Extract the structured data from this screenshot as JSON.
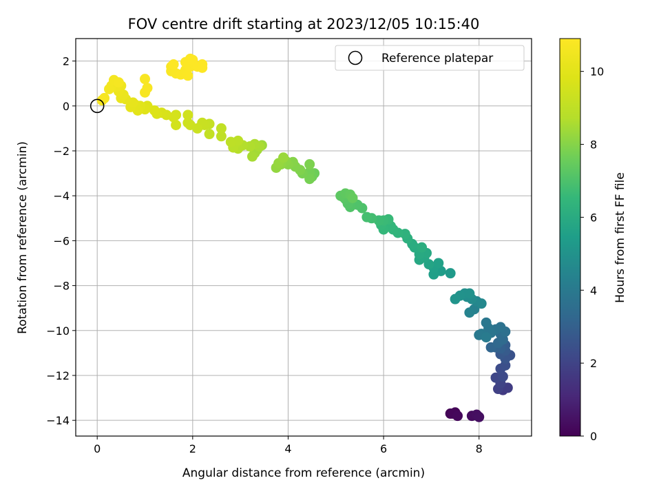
{
  "chart_data": {
    "type": "scatter",
    "title": "FOV centre drift starting at 2023/12/05 10:15:40",
    "xlabel": "Angular distance from reference (arcmin)",
    "ylabel": "Rotation from reference (arcmin)",
    "xlim": [
      -0.45,
      9.1
    ],
    "ylim": [
      -14.7,
      3.0
    ],
    "xticks": [
      0,
      2,
      4,
      6,
      8
    ],
    "yticks": [
      2,
      0,
      -2,
      -4,
      -6,
      -8,
      -10,
      -12,
      -14
    ],
    "grid": true,
    "legend": {
      "placement": "top-right",
      "entries": [
        "Reference platepar"
      ]
    },
    "reference_point": {
      "x": 0,
      "y": 0,
      "label": "Reference platepar"
    },
    "colorbar": {
      "label": "Hours from first FF file",
      "colormap": "viridis",
      "range": [
        0,
        10.9
      ],
      "ticks": [
        0,
        2,
        4,
        6,
        8,
        10
      ]
    },
    "color_encoding": "hours",
    "series": [
      {
        "points": [
          {
            "x": 7.4,
            "y": -13.7,
            "hours": 0.05
          },
          {
            "x": 7.5,
            "y": -13.65,
            "hours": 0.1
          },
          {
            "x": 7.45,
            "y": -13.7,
            "hours": 0.15
          },
          {
            "x": 7.55,
            "y": -13.8,
            "hours": 0.2
          },
          {
            "x": 7.85,
            "y": -13.8,
            "hours": 0.3
          },
          {
            "x": 7.95,
            "y": -13.75,
            "hours": 0.35
          },
          {
            "x": 8.0,
            "y": -13.85,
            "hours": 0.4
          },
          {
            "x": 8.5,
            "y": -12.65,
            "hours": 1.7
          },
          {
            "x": 8.6,
            "y": -12.55,
            "hours": 1.8
          },
          {
            "x": 8.4,
            "y": -12.6,
            "hours": 1.9
          },
          {
            "x": 8.45,
            "y": -12.35,
            "hours": 2.0
          },
          {
            "x": 8.35,
            "y": -12.1,
            "hours": 2.1
          },
          {
            "x": 8.5,
            "y": -12.05,
            "hours": 2.2
          },
          {
            "x": 8.45,
            "y": -11.7,
            "hours": 2.3
          },
          {
            "x": 8.55,
            "y": -11.55,
            "hours": 2.4
          },
          {
            "x": 8.65,
            "y": -11.1,
            "hours": 2.5
          },
          {
            "x": 8.55,
            "y": -11.25,
            "hours": 2.6
          },
          {
            "x": 8.45,
            "y": -11.05,
            "hours": 2.7
          },
          {
            "x": 8.55,
            "y": -10.9,
            "hours": 2.8
          },
          {
            "x": 8.55,
            "y": -10.65,
            "hours": 2.9
          },
          {
            "x": 8.45,
            "y": -10.8,
            "hours": 3.0
          },
          {
            "x": 8.35,
            "y": -10.75,
            "hours": 3.1
          },
          {
            "x": 8.25,
            "y": -10.75,
            "hours": 3.2
          },
          {
            "x": 8.4,
            "y": -10.55,
            "hours": 3.3
          },
          {
            "x": 8.5,
            "y": -10.4,
            "hours": 3.4
          },
          {
            "x": 8.45,
            "y": -10.15,
            "hours": 3.5
          },
          {
            "x": 8.55,
            "y": -10.05,
            "hours": 3.6
          },
          {
            "x": 8.45,
            "y": -9.85,
            "hours": 3.7
          },
          {
            "x": 8.35,
            "y": -9.95,
            "hours": 3.75
          },
          {
            "x": 8.25,
            "y": -10.1,
            "hours": 3.8
          },
          {
            "x": 8.2,
            "y": -9.9,
            "hours": 3.85
          },
          {
            "x": 8.15,
            "y": -9.65,
            "hours": 3.9
          },
          {
            "x": 8.05,
            "y": -10.15,
            "hours": 3.95
          },
          {
            "x": 8.0,
            "y": -10.2,
            "hours": 4.0
          },
          {
            "x": 8.15,
            "y": -10.3,
            "hours": 4.05
          },
          {
            "x": 7.9,
            "y": -9.05,
            "hours": 4.3
          },
          {
            "x": 7.8,
            "y": -9.2,
            "hours": 4.4
          },
          {
            "x": 7.95,
            "y": -8.7,
            "hours": 4.5
          },
          {
            "x": 8.05,
            "y": -8.8,
            "hours": 4.6
          },
          {
            "x": 7.85,
            "y": -8.6,
            "hours": 4.7
          },
          {
            "x": 7.75,
            "y": -8.5,
            "hours": 4.8
          },
          {
            "x": 7.7,
            "y": -8.35,
            "hours": 4.9
          },
          {
            "x": 7.8,
            "y": -8.35,
            "hours": 4.95
          },
          {
            "x": 7.6,
            "y": -8.45,
            "hours": 5.0
          },
          {
            "x": 7.5,
            "y": -8.6,
            "hours": 5.05
          },
          {
            "x": 7.4,
            "y": -7.45,
            "hours": 5.3
          },
          {
            "x": 7.2,
            "y": -7.35,
            "hours": 5.4
          },
          {
            "x": 7.05,
            "y": -7.5,
            "hours": 5.5
          },
          {
            "x": 7.05,
            "y": -7.2,
            "hours": 5.55
          },
          {
            "x": 7.15,
            "y": -7.0,
            "hours": 5.6
          },
          {
            "x": 6.95,
            "y": -7.05,
            "hours": 5.7
          },
          {
            "x": 6.85,
            "y": -6.75,
            "hours": 5.8
          },
          {
            "x": 6.75,
            "y": -6.85,
            "hours": 5.85
          },
          {
            "x": 6.9,
            "y": -6.55,
            "hours": 5.9
          },
          {
            "x": 6.75,
            "y": -6.6,
            "hours": 5.95
          },
          {
            "x": 6.65,
            "y": -6.3,
            "hours": 6.0
          },
          {
            "x": 6.6,
            "y": -6.15,
            "hours": 6.05
          },
          {
            "x": 6.8,
            "y": -6.3,
            "hours": 6.1
          },
          {
            "x": 6.5,
            "y": -5.9,
            "hours": 6.2
          },
          {
            "x": 6.45,
            "y": -5.7,
            "hours": 6.3
          },
          {
            "x": 6.3,
            "y": -5.65,
            "hours": 6.35
          },
          {
            "x": 6.2,
            "y": -5.5,
            "hours": 6.4
          },
          {
            "x": 6.15,
            "y": -5.35,
            "hours": 6.45
          },
          {
            "x": 6.0,
            "y": -5.5,
            "hours": 6.5
          },
          {
            "x": 5.95,
            "y": -5.3,
            "hours": 6.55
          },
          {
            "x": 6.1,
            "y": -5.05,
            "hours": 6.6
          },
          {
            "x": 6.0,
            "y": -5.1,
            "hours": 6.65
          },
          {
            "x": 5.9,
            "y": -5.1,
            "hours": 6.7
          },
          {
            "x": 5.75,
            "y": -5.0,
            "hours": 6.8
          },
          {
            "x": 5.65,
            "y": -4.95,
            "hours": 6.85
          },
          {
            "x": 5.55,
            "y": -4.55,
            "hours": 7.0
          },
          {
            "x": 5.45,
            "y": -4.4,
            "hours": 7.05
          },
          {
            "x": 5.3,
            "y": -4.5,
            "hours": 7.1
          },
          {
            "x": 5.25,
            "y": -4.35,
            "hours": 7.15
          },
          {
            "x": 5.2,
            "y": -4.15,
            "hours": 7.2
          },
          {
            "x": 5.15,
            "y": -4.05,
            "hours": 7.25
          },
          {
            "x": 5.1,
            "y": -4.0,
            "hours": 7.3
          },
          {
            "x": 5.2,
            "y": -3.9,
            "hours": 7.35
          },
          {
            "x": 5.3,
            "y": -3.95,
            "hours": 7.4
          },
          {
            "x": 5.35,
            "y": -4.1,
            "hours": 7.45
          },
          {
            "x": 4.55,
            "y": -3.0,
            "hours": 7.6
          },
          {
            "x": 4.5,
            "y": -3.15,
            "hours": 7.65
          },
          {
            "x": 4.45,
            "y": -2.95,
            "hours": 7.7
          },
          {
            "x": 4.45,
            "y": -3.25,
            "hours": 7.75
          },
          {
            "x": 4.3,
            "y": -3.0,
            "hours": 7.8
          },
          {
            "x": 4.45,
            "y": -2.6,
            "hours": 7.85
          },
          {
            "x": 4.25,
            "y": -2.85,
            "hours": 7.9
          },
          {
            "x": 4.15,
            "y": -2.7,
            "hours": 7.95
          },
          {
            "x": 4.1,
            "y": -2.5,
            "hours": 8.0
          },
          {
            "x": 4.0,
            "y": -2.6,
            "hours": 8.05
          },
          {
            "x": 3.95,
            "y": -2.45,
            "hours": 8.1
          },
          {
            "x": 3.85,
            "y": -2.6,
            "hours": 8.15
          },
          {
            "x": 3.75,
            "y": -2.75,
            "hours": 8.2
          },
          {
            "x": 3.8,
            "y": -2.55,
            "hours": 8.25
          },
          {
            "x": 3.9,
            "y": -2.3,
            "hours": 8.3
          },
          {
            "x": 3.45,
            "y": -1.75,
            "hours": 8.35
          },
          {
            "x": 3.35,
            "y": -1.95,
            "hours": 8.4
          },
          {
            "x": 3.3,
            "y": -2.1,
            "hours": 8.45
          },
          {
            "x": 3.25,
            "y": -2.25,
            "hours": 8.5
          },
          {
            "x": 3.4,
            "y": -1.8,
            "hours": 8.55
          },
          {
            "x": 3.3,
            "y": -1.7,
            "hours": 8.6
          },
          {
            "x": 3.2,
            "y": -1.8,
            "hours": 8.65
          },
          {
            "x": 3.05,
            "y": -1.75,
            "hours": 8.7
          },
          {
            "x": 2.95,
            "y": -1.9,
            "hours": 8.75
          },
          {
            "x": 2.9,
            "y": -1.7,
            "hours": 8.8
          },
          {
            "x": 2.85,
            "y": -1.85,
            "hours": 8.85
          },
          {
            "x": 2.95,
            "y": -1.55,
            "hours": 8.9
          },
          {
            "x": 2.8,
            "y": -1.6,
            "hours": 8.95
          },
          {
            "x": 2.6,
            "y": -1.35,
            "hours": 9.0
          },
          {
            "x": 2.6,
            "y": -1.0,
            "hours": 9.05
          },
          {
            "x": 2.35,
            "y": -1.25,
            "hours": 9.1
          },
          {
            "x": 2.35,
            "y": -0.8,
            "hours": 9.15
          },
          {
            "x": 2.25,
            "y": -0.85,
            "hours": 9.2
          },
          {
            "x": 2.2,
            "y": -0.75,
            "hours": 9.25
          },
          {
            "x": 2.1,
            "y": -1.0,
            "hours": 9.3
          },
          {
            "x": 1.95,
            "y": -0.85,
            "hours": 9.35
          },
          {
            "x": 1.9,
            "y": -0.75,
            "hours": 9.4
          },
          {
            "x": 1.9,
            "y": -0.4,
            "hours": 9.45
          },
          {
            "x": 1.65,
            "y": -0.85,
            "hours": 9.5
          },
          {
            "x": 1.65,
            "y": -0.4,
            "hours": 9.55
          },
          {
            "x": 1.6,
            "y": -0.5,
            "hours": 9.6
          },
          {
            "x": 1.45,
            "y": -0.4,
            "hours": 9.65
          },
          {
            "x": 1.35,
            "y": -0.3,
            "hours": 9.7
          },
          {
            "x": 1.25,
            "y": -0.35,
            "hours": 9.75
          },
          {
            "x": 1.2,
            "y": -0.2,
            "hours": 9.8
          },
          {
            "x": 1.05,
            "y": 0.0,
            "hours": 9.85
          },
          {
            "x": 1.0,
            "y": -0.15,
            "hours": 9.9
          },
          {
            "x": 0.9,
            "y": 0.0,
            "hours": 9.95
          },
          {
            "x": 0.85,
            "y": -0.2,
            "hours": 10.0
          },
          {
            "x": 0.8,
            "y": 0.05,
            "hours": 10.05
          },
          {
            "x": 0.7,
            "y": -0.05,
            "hours": 10.1
          },
          {
            "x": 0.75,
            "y": 0.15,
            "hours": 10.15
          },
          {
            "x": 0.6,
            "y": 0.3,
            "hours": 10.2
          },
          {
            "x": 0.5,
            "y": 0.35,
            "hours": 10.25
          },
          {
            "x": 0.55,
            "y": 0.5,
            "hours": 10.3
          },
          {
            "x": 0.45,
            "y": 0.65,
            "hours": 10.35
          },
          {
            "x": 0.5,
            "y": 0.9,
            "hours": 10.4
          },
          {
            "x": 0.4,
            "y": 0.85,
            "hours": 10.45
          },
          {
            "x": 0.3,
            "y": 0.9,
            "hours": 10.5
          },
          {
            "x": 0.25,
            "y": 0.75,
            "hours": 10.55
          },
          {
            "x": 0.35,
            "y": 1.15,
            "hours": 10.6
          },
          {
            "x": 0.45,
            "y": 1.05,
            "hours": 10.62
          },
          {
            "x": 0.15,
            "y": 0.35,
            "hours": 10.65
          },
          {
            "x": 0.1,
            "y": 0.25,
            "hours": 10.68
          },
          {
            "x": 1.0,
            "y": 0.6,
            "hours": 10.7
          },
          {
            "x": 1.05,
            "y": 0.8,
            "hours": 10.72
          },
          {
            "x": 1.0,
            "y": 1.2,
            "hours": 10.74
          },
          {
            "x": 1.55,
            "y": 1.75,
            "hours": 10.76
          },
          {
            "x": 1.55,
            "y": 1.55,
            "hours": 10.78
          },
          {
            "x": 1.65,
            "y": 1.45,
            "hours": 10.8
          },
          {
            "x": 1.75,
            "y": 1.4,
            "hours": 10.82
          },
          {
            "x": 1.85,
            "y": 1.6,
            "hours": 10.84
          },
          {
            "x": 1.9,
            "y": 1.35,
            "hours": 10.85
          },
          {
            "x": 1.85,
            "y": 1.95,
            "hours": 10.86
          },
          {
            "x": 1.95,
            "y": 2.1,
            "hours": 10.87
          },
          {
            "x": 1.95,
            "y": 1.75,
            "hours": 10.88
          },
          {
            "x": 2.05,
            "y": 1.8,
            "hours": 10.88
          },
          {
            "x": 2.0,
            "y": 2.05,
            "hours": 10.89
          },
          {
            "x": 2.1,
            "y": 1.75,
            "hours": 10.89
          },
          {
            "x": 2.2,
            "y": 1.85,
            "hours": 10.9
          },
          {
            "x": 2.2,
            "y": 1.7,
            "hours": 10.9
          },
          {
            "x": 1.6,
            "y": 1.85,
            "hours": 10.9
          }
        ]
      }
    ]
  }
}
